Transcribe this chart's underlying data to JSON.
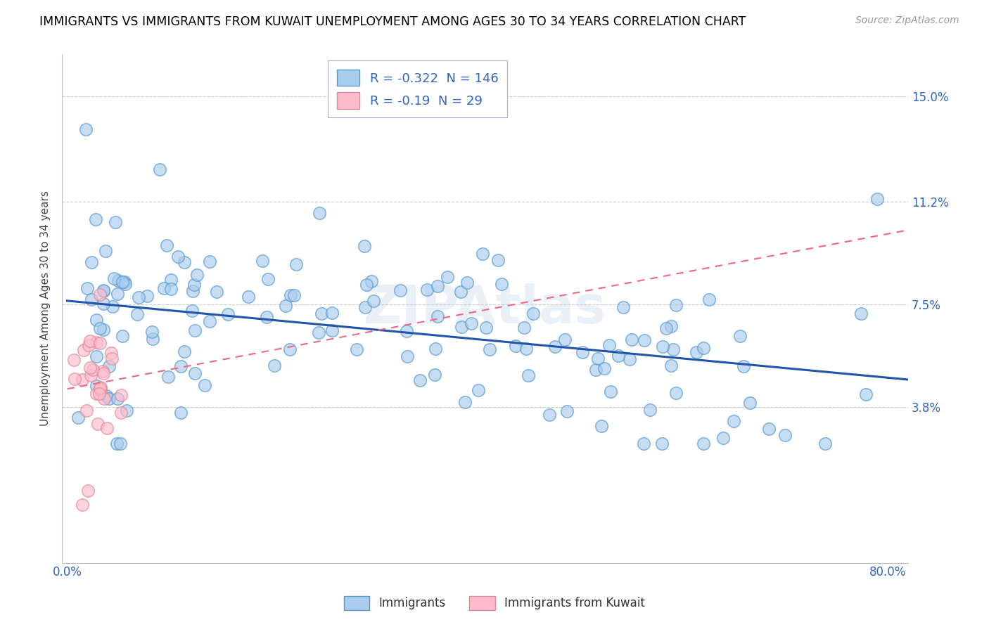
{
  "title": "IMMIGRANTS VS IMMIGRANTS FROM KUWAIT UNEMPLOYMENT AMONG AGES 30 TO 34 YEARS CORRELATION CHART",
  "source": "Source: ZipAtlas.com",
  "ylabel": "Unemployment Among Ages 30 to 34 years",
  "xlim": [
    -0.005,
    0.82
  ],
  "ylim": [
    -0.018,
    0.165
  ],
  "ytick_vals": [
    0.038,
    0.075,
    0.112,
    0.15
  ],
  "ytick_labels": [
    "3.8%",
    "7.5%",
    "11.2%",
    "15.0%"
  ],
  "xtick_vals": [
    0.0,
    0.1,
    0.2,
    0.3,
    0.4,
    0.5,
    0.6,
    0.7,
    0.8
  ],
  "xtick_labels": [
    "0.0%",
    "",
    "",
    "",
    "",
    "",
    "",
    "",
    "80.0%"
  ],
  "series1_face": "#aaccee",
  "series1_edge": "#5599cc",
  "series2_face": "#ffbbcc",
  "series2_edge": "#dd8899",
  "trend1_color": "#2255aa",
  "trend2_color": "#ee6688",
  "R1": -0.322,
  "N1": 146,
  "R2": -0.19,
  "N2": 29,
  "legend1": "Immigrants",
  "legend2": "Immigrants from Kuwait",
  "title_fontsize": 12.5,
  "label_fontsize": 11,
  "tick_fontsize": 12,
  "legend_fontsize": 13
}
